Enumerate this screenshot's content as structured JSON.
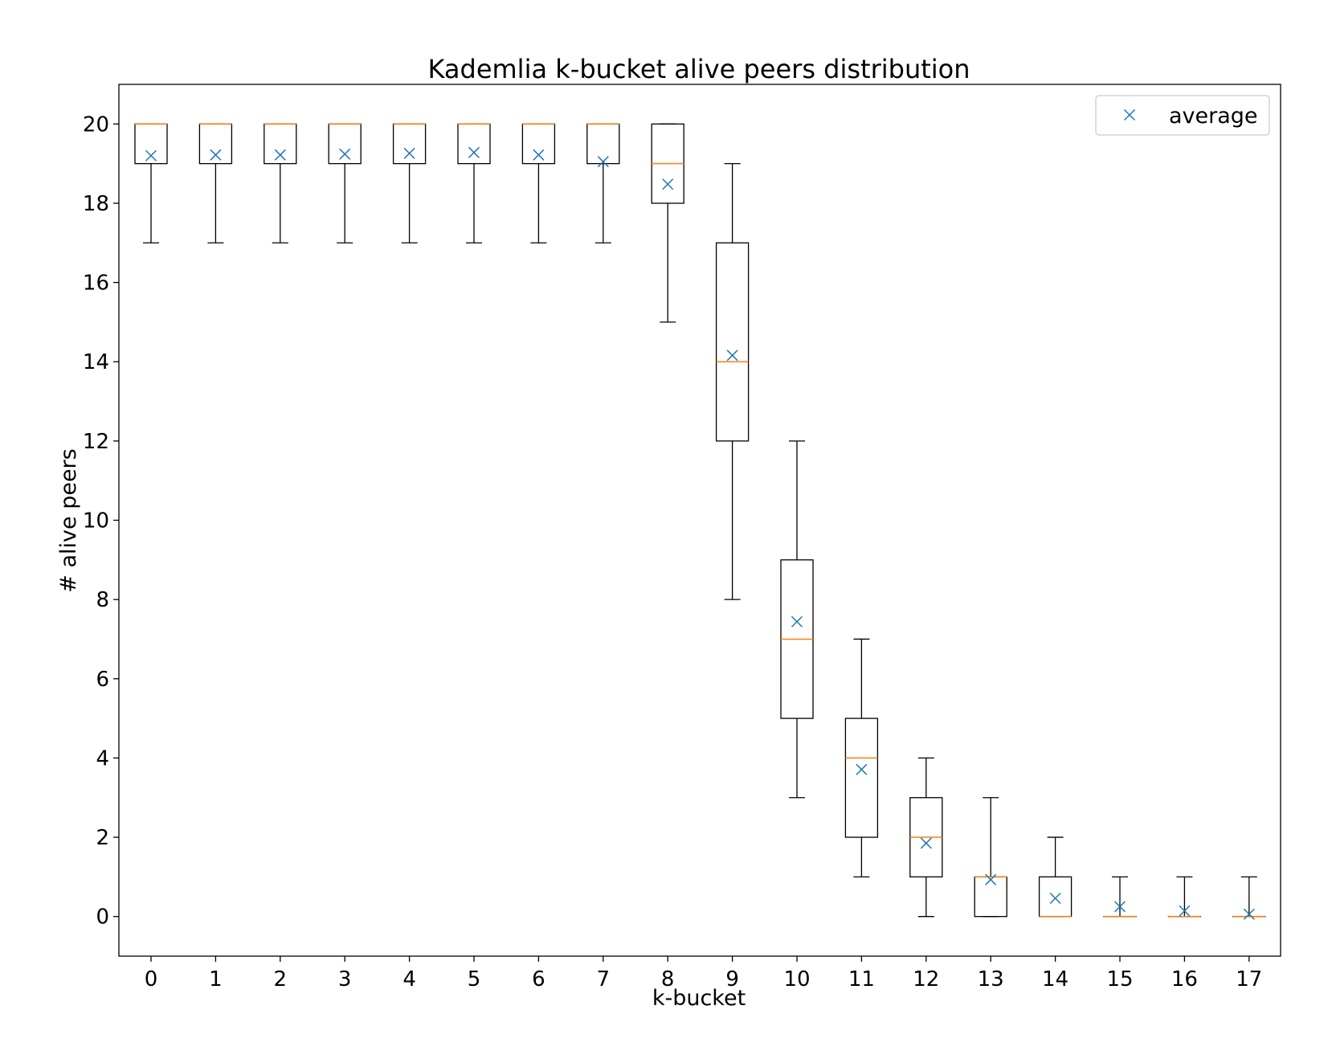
{
  "chart_data": {
    "type": "box",
    "title": "Kademlia k-bucket alive peers distribution",
    "xlabel": "k-bucket",
    "ylabel": "# alive peers",
    "ylim": [
      -1,
      21
    ],
    "yticks": [
      0,
      2,
      4,
      6,
      8,
      10,
      12,
      14,
      16,
      18,
      20
    ],
    "grid": false,
    "legend": {
      "position": "top-right",
      "entries": [
        {
          "label": "average",
          "marker": "x"
        }
      ]
    },
    "colors": {
      "box": "#000000",
      "median": "#ff7f0e",
      "mean_marker": "#1f77b4"
    },
    "categories": [
      "0",
      "1",
      "2",
      "3",
      "4",
      "5",
      "6",
      "7",
      "8",
      "9",
      "10",
      "11",
      "12",
      "13",
      "14",
      "15",
      "16",
      "17"
    ],
    "boxes": [
      {
        "whisker_low": 17,
        "q1": 19,
        "median": 20,
        "q3": 20,
        "whisker_high": 20,
        "mean": 19.2
      },
      {
        "whisker_low": 17,
        "q1": 19,
        "median": 20,
        "q3": 20,
        "whisker_high": 20,
        "mean": 19.22
      },
      {
        "whisker_low": 17,
        "q1": 19,
        "median": 20,
        "q3": 20,
        "whisker_high": 20,
        "mean": 19.22
      },
      {
        "whisker_low": 17,
        "q1": 19,
        "median": 20,
        "q3": 20,
        "whisker_high": 20,
        "mean": 19.24
      },
      {
        "whisker_low": 17,
        "q1": 19,
        "median": 20,
        "q3": 20,
        "whisker_high": 20,
        "mean": 19.26
      },
      {
        "whisker_low": 17,
        "q1": 19,
        "median": 20,
        "q3": 20,
        "whisker_high": 20,
        "mean": 19.28
      },
      {
        "whisker_low": 17,
        "q1": 19,
        "median": 20,
        "q3": 20,
        "whisker_high": 20,
        "mean": 19.22
      },
      {
        "whisker_low": 17,
        "q1": 19,
        "median": 20,
        "q3": 20,
        "whisker_high": 20,
        "mean": 19.05
      },
      {
        "whisker_low": 15,
        "q1": 18,
        "median": 19,
        "q3": 20,
        "whisker_high": 20,
        "mean": 18.48
      },
      {
        "whisker_low": 8,
        "q1": 12,
        "median": 14,
        "q3": 17,
        "whisker_high": 19,
        "mean": 14.16
      },
      {
        "whisker_low": 3,
        "q1": 5,
        "median": 7,
        "q3": 9,
        "whisker_high": 12,
        "mean": 7.44
      },
      {
        "whisker_low": 1,
        "q1": 2,
        "median": 4,
        "q3": 5,
        "whisker_high": 7,
        "mean": 3.71
      },
      {
        "whisker_low": 0,
        "q1": 1,
        "median": 2,
        "q3": 3,
        "whisker_high": 4,
        "mean": 1.85
      },
      {
        "whisker_low": 0,
        "q1": 0,
        "median": 1,
        "q3": 1,
        "whisker_high": 3,
        "mean": 0.93
      },
      {
        "whisker_low": 0,
        "q1": 0,
        "median": 0,
        "q3": 1,
        "whisker_high": 2,
        "mean": 0.46
      },
      {
        "whisker_low": 0,
        "q1": 0,
        "median": 0,
        "q3": 0,
        "whisker_high": 1,
        "mean": 0.25
      },
      {
        "whisker_low": 0,
        "q1": 0,
        "median": 0,
        "q3": 0,
        "whisker_high": 1,
        "mean": 0.14
      },
      {
        "whisker_low": 0,
        "q1": 0,
        "median": 0,
        "q3": 0,
        "whisker_high": 1,
        "mean": 0.06
      }
    ]
  }
}
